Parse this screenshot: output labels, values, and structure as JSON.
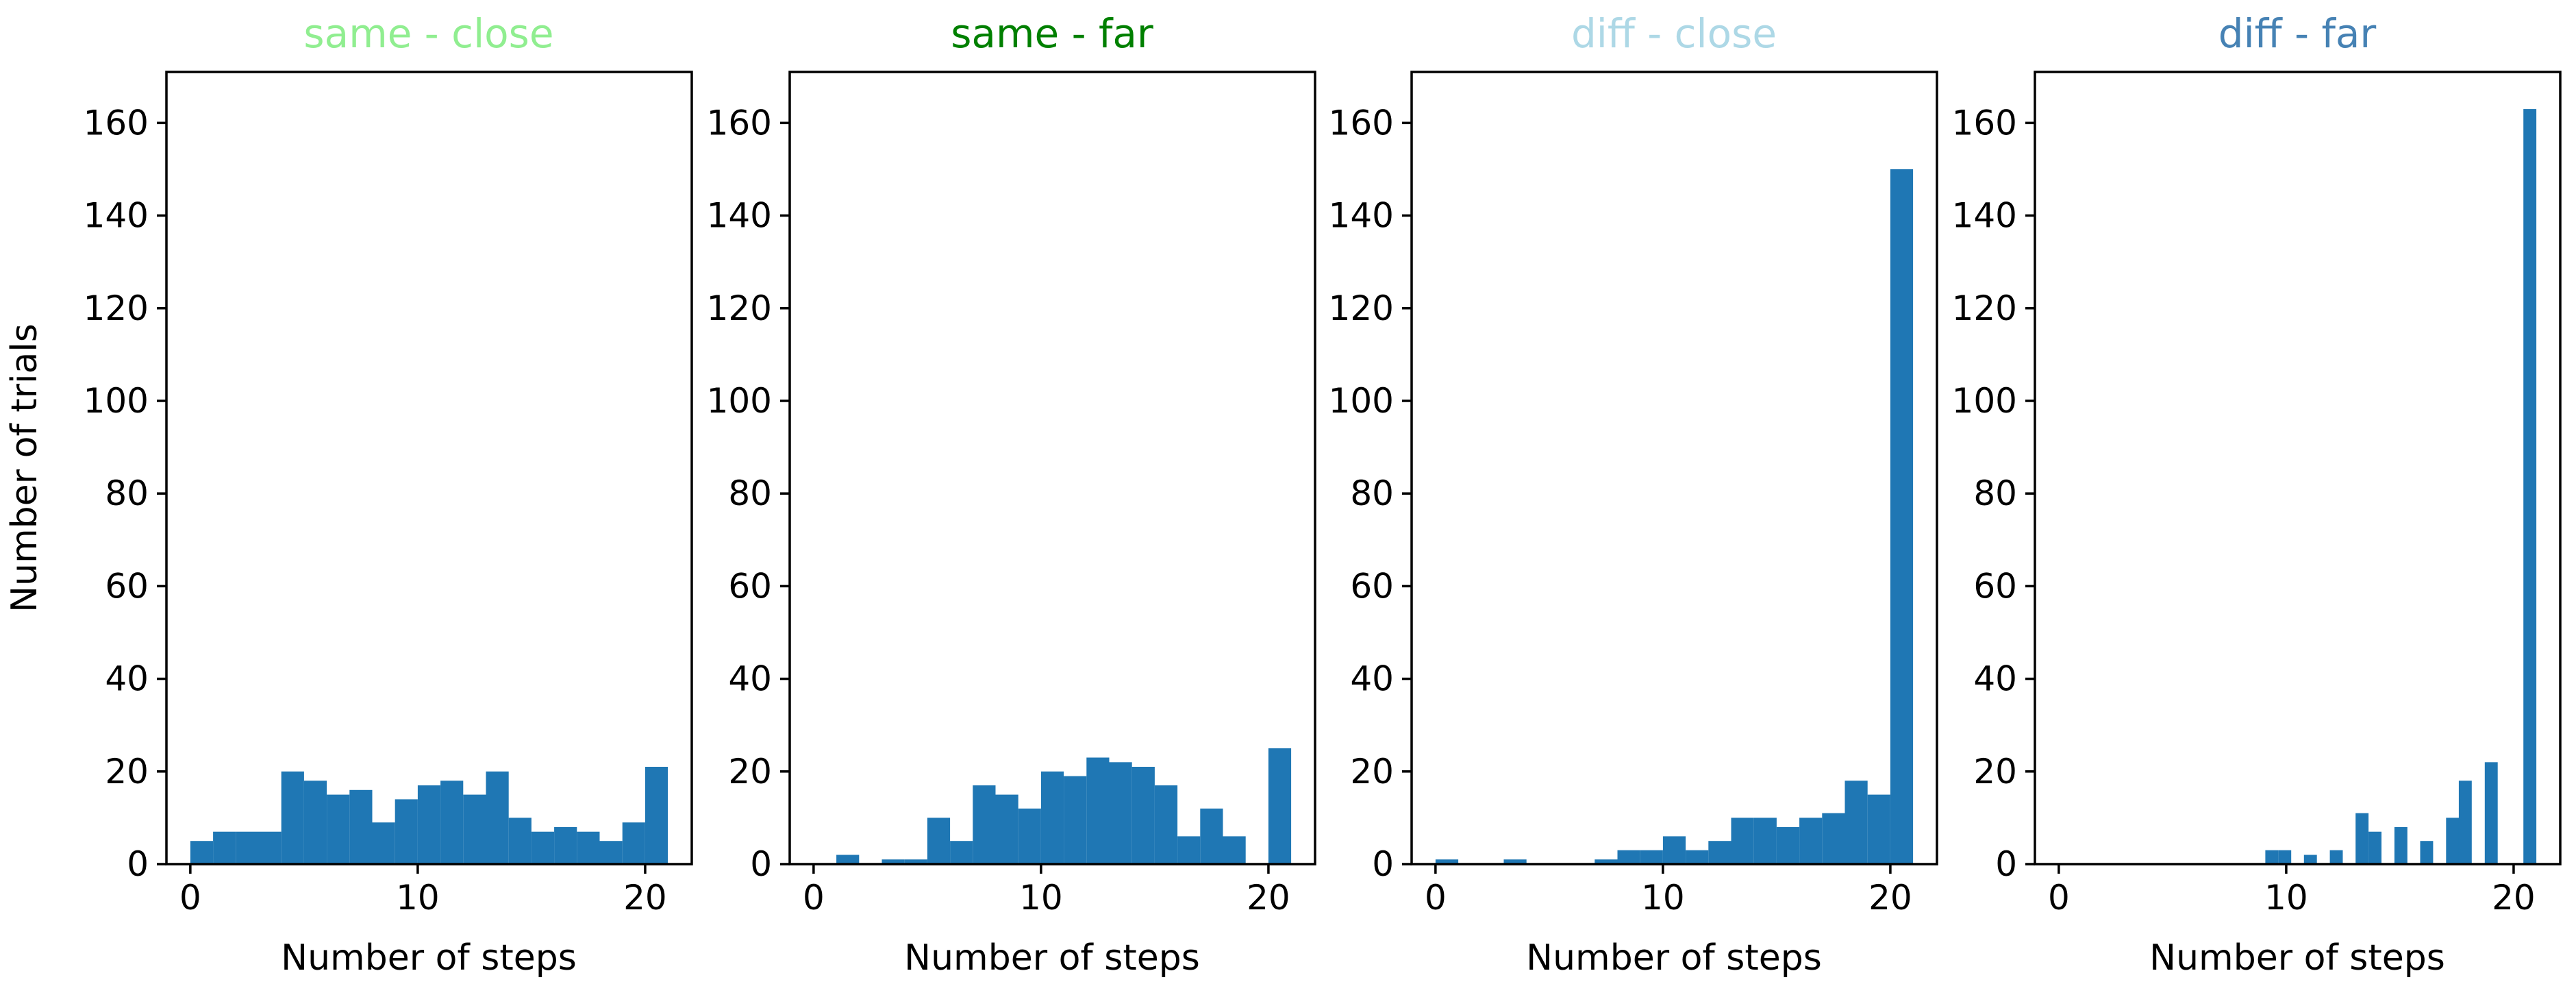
{
  "figure": {
    "background": "#ffffff",
    "axis_color": "#000000",
    "bar_color": "#1f77b4"
  },
  "axes_common": {
    "xlabel": "Number of steps",
    "ylabel": "Number of trials",
    "xticks": [
      0,
      10,
      20
    ],
    "yticks": [
      0,
      20,
      40,
      60,
      80,
      100,
      120,
      140,
      160
    ],
    "xlim": [
      -1.05,
      22.05
    ],
    "ylim": [
      0,
      171
    ],
    "grid": false
  },
  "chart_data": [
    {
      "type": "bar",
      "title": "same - close",
      "title_color": "#90EE90",
      "bin_start": 0,
      "bin_width": 1,
      "categories_note": "histogram of steps, bins [0,21] width 1",
      "values": [
        5,
        7,
        7,
        7,
        20,
        18,
        15,
        16,
        9,
        14,
        17,
        18,
        15,
        20,
        10,
        7,
        8,
        7,
        5,
        9,
        21
      ]
    },
    {
      "type": "bar",
      "title": "same - far",
      "title_color": "#008000",
      "bin_start": 0,
      "bin_width": 1,
      "categories_note": "histogram of steps, bins [0,21] width 1",
      "values": [
        0,
        2,
        0,
        1,
        1,
        10,
        5,
        17,
        15,
        12,
        20,
        19,
        23,
        22,
        21,
        17,
        6,
        12,
        6,
        0,
        25
      ]
    },
    {
      "type": "bar",
      "title": "diff - close",
      "title_color": "#ADD8E6",
      "bin_start": 0,
      "bin_width": 1,
      "categories_note": "histogram of steps, bins [0,21] width 1",
      "values": [
        1,
        0,
        0,
        1,
        0,
        0,
        0,
        1,
        3,
        3,
        6,
        3,
        5,
        10,
        10,
        8,
        10,
        11,
        18,
        15,
        150
      ]
    },
    {
      "type": "bar",
      "title": "diff - far",
      "title_color": "#4682B4",
      "bin_width": 0.568,
      "categories_note": "histogram of steps, narrow bins",
      "bars": [
        {
          "x": 9.08,
          "h": 3
        },
        {
          "x": 9.65,
          "h": 3
        },
        {
          "x": 10.78,
          "h": 2
        },
        {
          "x": 11.92,
          "h": 3
        },
        {
          "x": 13.05,
          "h": 11
        },
        {
          "x": 13.62,
          "h": 7
        },
        {
          "x": 14.76,
          "h": 8
        },
        {
          "x": 15.89,
          "h": 5
        },
        {
          "x": 17.03,
          "h": 10
        },
        {
          "x": 17.59,
          "h": 18
        },
        {
          "x": 18.73,
          "h": 22
        },
        {
          "x": 20.43,
          "h": 163
        }
      ]
    }
  ]
}
